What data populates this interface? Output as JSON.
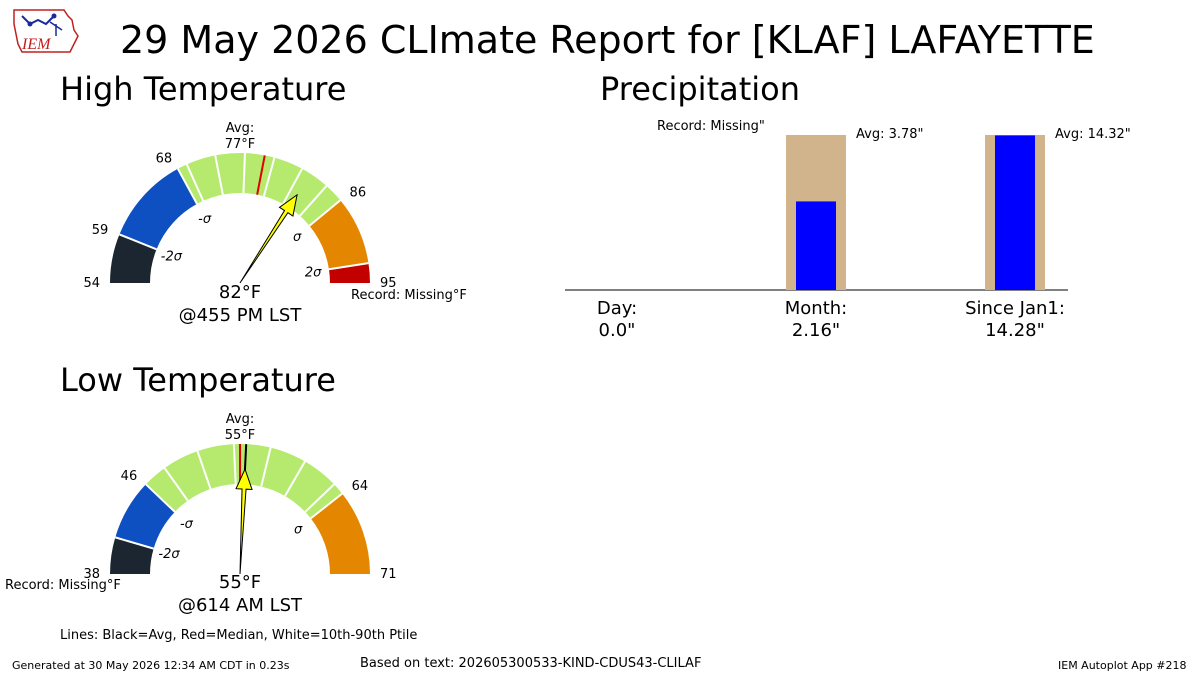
{
  "header": {
    "title": "29 May 2026 CLImate Report for [KLAF] LAFAYETTE",
    "logo_text": "IEM"
  },
  "colors": {
    "below_2sigma": "#1c2631",
    "below_1sigma": "#0e4fc2",
    "normal_band": "#b5ea6e",
    "above_1sigma": "#e48600",
    "above_2sigma": "#c20000",
    "needle": "#ffff00",
    "precip_avg": "#d2b48c",
    "precip_obs": "#0000ff"
  },
  "chart_data": [
    {
      "type": "gauge",
      "title": "High Temperature",
      "range": [
        54,
        95
      ],
      "ticks": [
        54,
        59,
        68,
        86,
        95
      ],
      "tick_labels": [
        "54",
        "59",
        "68",
        "86",
        "95"
      ],
      "band_labels": [
        "-2σ",
        "-σ",
        "σ",
        "2σ"
      ],
      "bands": [
        {
          "from": 54,
          "to": 59,
          "color_key": "below_2sigma"
        },
        {
          "from": 59,
          "to": 68,
          "color_key": "below_1sigma"
        },
        {
          "from": 68,
          "to": 86,
          "color_key": "normal_band"
        },
        {
          "from": 86,
          "to": 93,
          "color_key": "above_1sigma"
        },
        {
          "from": 93,
          "to": 95,
          "color_key": "above_2sigma"
        }
      ],
      "percentile_lines": [
        69,
        72,
        75,
        78,
        81,
        84
      ],
      "average": 77,
      "median": 77,
      "observed": 82,
      "avg_label": "Avg:",
      "avg_value_label": "77°F",
      "reading": "82°F",
      "reading_time": "@455 PM LST",
      "record_label": "Record: Missing°F"
    },
    {
      "type": "gauge",
      "title": "Low Temperature",
      "range": [
        38,
        71
      ],
      "ticks": [
        38,
        46,
        64,
        71
      ],
      "tick_labels": [
        "38",
        "46",
        "64",
        "71"
      ],
      "band_labels": [
        "-2σ",
        "-σ",
        "σ"
      ],
      "bands": [
        {
          "from": 38,
          "to": 41,
          "color_key": "below_2sigma"
        },
        {
          "from": 41,
          "to": 46,
          "color_key": "below_1sigma"
        },
        {
          "from": 46,
          "to": 64,
          "color_key": "normal_band"
        },
        {
          "from": 64,
          "to": 71,
          "color_key": "above_1sigma"
        }
      ],
      "percentile_lines": [
        48,
        51,
        54,
        57,
        60,
        63
      ],
      "average": 55,
      "median": 54.5,
      "observed": 55,
      "avg_label": "Avg:",
      "avg_value_label": "55°F",
      "reading": "55°F",
      "reading_time": "@614 AM LST",
      "record_label": "Record: Missing°F"
    },
    {
      "type": "bar",
      "title": "Precipitation",
      "categories": [
        "Day",
        "Month",
        "Since Jan1"
      ],
      "category_labels": [
        "Day:",
        "Month:",
        "Since Jan1:"
      ],
      "observed": [
        0.0,
        2.16,
        14.28
      ],
      "observed_labels": [
        "0.0\"",
        "2.16\"",
        "14.28\""
      ],
      "average": [
        null,
        3.78,
        14.32
      ],
      "average_labels": [
        "",
        "Avg: 3.78\"",
        "Avg: 14.32\""
      ],
      "record_label": "Record: Missing\""
    }
  ],
  "footer": {
    "legend_note": "Lines: Black=Avg, Red=Median, White=10th-90th Ptile",
    "generated": "Generated at 30 May 2026 12:34 AM CDT in 0.23s",
    "source": "Based on text: 202605300533-KIND-CDUS43-CLILAF",
    "app": "IEM Autoplot App #218"
  }
}
